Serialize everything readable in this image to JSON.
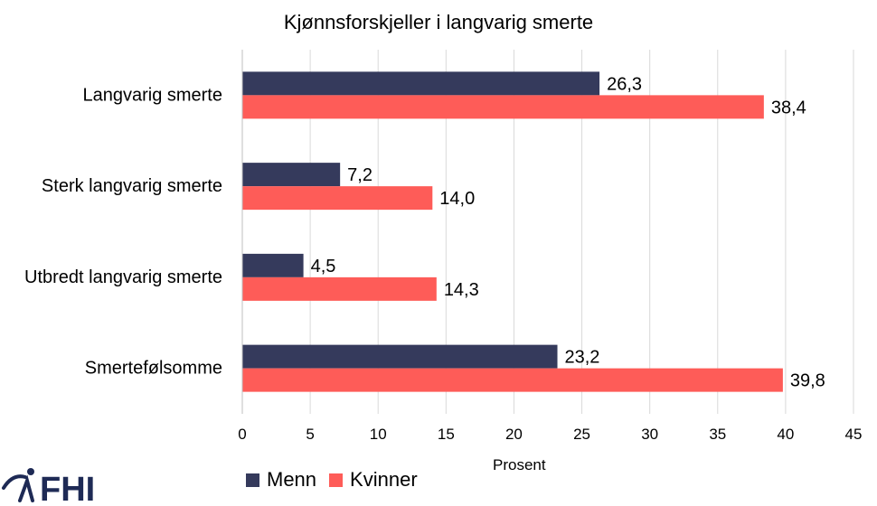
{
  "chart_data": {
    "type": "bar",
    "orientation": "horizontal",
    "title": "Kjønnsforskjeller i langvarig smerte",
    "xlabel": "Prosent",
    "ylabel": "",
    "categories": [
      "Langvarig smerte",
      "Sterk langvarig smerte",
      "Utbredt langvarig smerte",
      "Smertefølsomme"
    ],
    "series": [
      {
        "name": "Menn",
        "color": "#353a5c",
        "values": [
          26.3,
          7.2,
          4.5,
          23.2
        ],
        "labels": [
          "26,3",
          "7,2",
          "4,5",
          "23,2"
        ]
      },
      {
        "name": "Kvinner",
        "color": "#fe5c58",
        "values": [
          38.4,
          14.0,
          14.3,
          39.8
        ],
        "labels": [
          "38,4",
          "14,0",
          "14,3",
          "39,8"
        ]
      }
    ],
    "xlim": [
      0,
      45
    ],
    "xticks": [
      0,
      5,
      10,
      15,
      20,
      25,
      30,
      35,
      40,
      45
    ],
    "grid": true,
    "legend_position": "bottom"
  },
  "logo": {
    "text": "FHI",
    "color": "#1e2a55"
  }
}
